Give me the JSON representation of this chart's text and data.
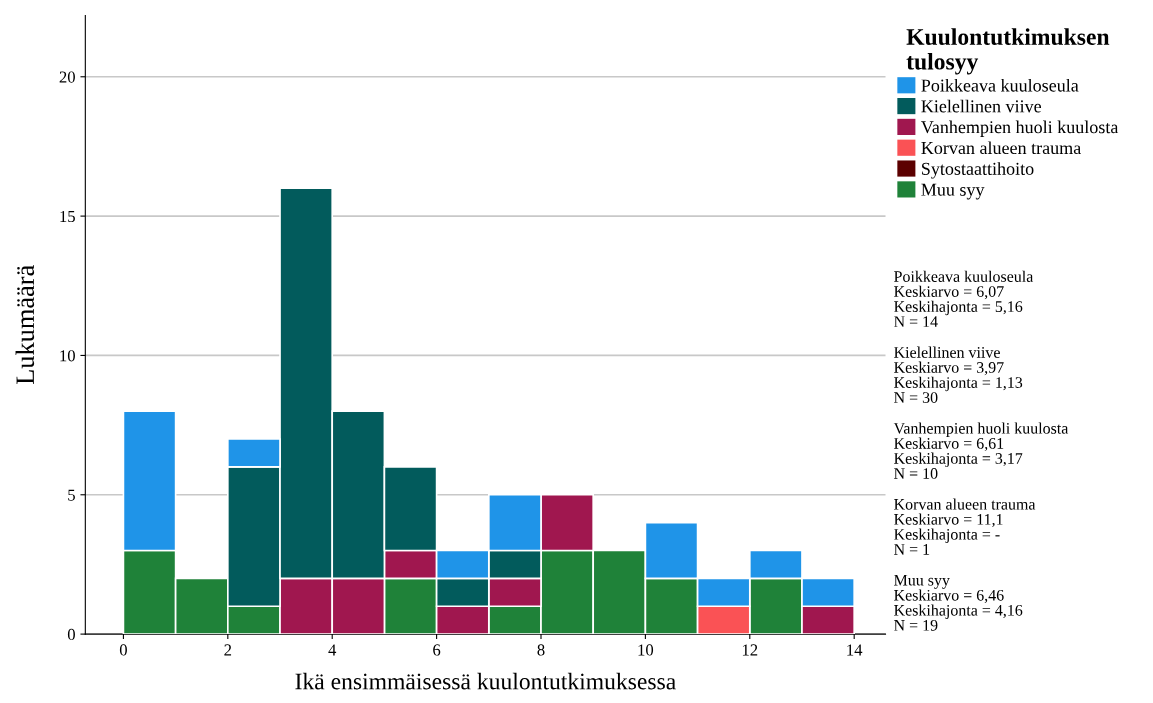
{
  "chart_data": {
    "type": "bar",
    "stacked": true,
    "xlabel": "Ikä ensimmäisessä kuulontutkimuksessa",
    "ylabel": "Lukumäärä",
    "legend_title": "Kuulontutkimuksen\ntulosyy",
    "legend": "right",
    "x": [
      0.5,
      1.5,
      2.5,
      3.5,
      4.5,
      5.5,
      6.5,
      7.5,
      8.5,
      9.5,
      10.5,
      11.5,
      12.5,
      13.5
    ],
    "series": [
      {
        "name": "Muu syy",
        "color": "#1f8239",
        "values": [
          3,
          2,
          1,
          0,
          0,
          2,
          0,
          1,
          3,
          3,
          2,
          0,
          2,
          0
        ]
      },
      {
        "name": "Sytostaattihoito",
        "color": "#5c0000",
        "values": [
          0,
          0,
          0,
          0,
          0,
          0,
          0,
          0,
          0,
          0,
          0,
          0,
          0,
          0
        ]
      },
      {
        "name": "Korvan alueen trauma",
        "color": "#fa5255",
        "values": [
          0,
          0,
          0,
          0,
          0,
          0,
          0,
          0,
          0,
          0,
          0,
          1,
          0,
          0
        ]
      },
      {
        "name": "Vanhempien huoli kuulosta",
        "color": "#a0174f",
        "values": [
          0,
          0,
          0,
          2,
          2,
          1,
          1,
          1,
          2,
          0,
          0,
          0,
          0,
          1
        ]
      },
      {
        "name": "Kielellinen viive",
        "color": "#025b5c",
        "values": [
          0,
          0,
          5,
          14,
          6,
          3,
          1,
          1,
          0,
          0,
          0,
          0,
          0,
          0
        ]
      },
      {
        "name": "Poikkeava kuuloseula",
        "color": "#1f94e8",
        "values": [
          5,
          0,
          1,
          0,
          0,
          0,
          1,
          2,
          0,
          0,
          2,
          1,
          1,
          1
        ]
      }
    ],
    "xlim": [
      -0.73,
      14.6
    ],
    "ylim": [
      0,
      22.2
    ],
    "xticks": [
      0,
      2,
      4,
      6,
      8,
      10,
      12,
      14
    ],
    "yticks": [
      0,
      5,
      10,
      15,
      20
    ],
    "grid": "y",
    "annotations": [
      "Poikkeava kuuloseula\nKeskiarvo = 6,07\nKeskihajonta = 5,16\nN = 14",
      "Kielellinen viive\nKeskiarvo = 3,97\nKeskihajonta = 1,13\nN = 30",
      "Vanhempien huoli kuulosta\nKeskiarvo = 6,61\nKeskihajonta = 3,17\nN = 10",
      "Korvan alueen trauma\nKeskiarvo = 11,1\nKeskihajonta = -\nN = 1",
      "Muu syy\nKeskiarvo = 6,46\nKeskihajonta = 4,16\nN = 19"
    ]
  }
}
